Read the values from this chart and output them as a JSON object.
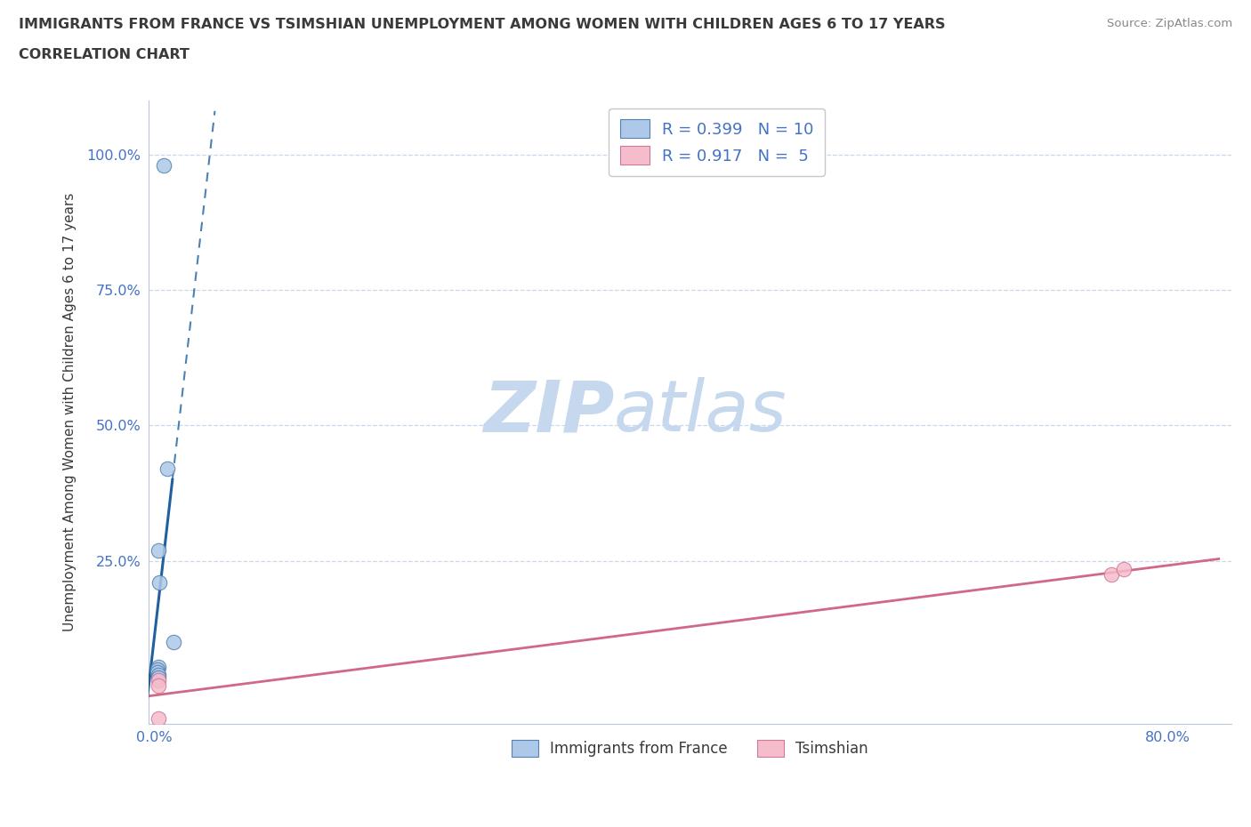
{
  "title_line1": "IMMIGRANTS FROM FRANCE VS TSIMSHIAN UNEMPLOYMENT AMONG WOMEN WITH CHILDREN AGES 6 TO 17 YEARS",
  "title_line2": "CORRELATION CHART",
  "source_text": "Source: ZipAtlas.com",
  "ylabel": "Unemployment Among Women with Children Ages 6 to 17 years",
  "xlim": [
    -0.5,
    85.0
  ],
  "ylim": [
    -5.0,
    110.0
  ],
  "blue_points_x": [
    0.7,
    0.3,
    0.4,
    0.3,
    0.2,
    0.2,
    0.3,
    0.3,
    1.0,
    1.5
  ],
  "blue_points_y": [
    98.0,
    27.0,
    21.0,
    5.5,
    5.0,
    4.5,
    4.0,
    3.5,
    42.0,
    10.0
  ],
  "pink_points_x": [
    0.3,
    0.3,
    0.3,
    75.5,
    76.5
  ],
  "pink_points_y": [
    3.0,
    2.0,
    -4.0,
    22.5,
    23.5
  ],
  "blue_R": 0.399,
  "blue_N": 10,
  "pink_R": 0.917,
  "pink_N": 5,
  "blue_marker_color": "#adc8e8",
  "blue_edge_color": "#5580b0",
  "blue_line_color": "#2060a0",
  "pink_marker_color": "#f5bccb",
  "pink_edge_color": "#d07898",
  "pink_line_color": "#d06888",
  "legend_label_blue": "Immigrants from France",
  "legend_label_pink": "Tsimshian",
  "watermark_zip": "ZIP",
  "watermark_atlas": "atlas",
  "watermark_color_zip": "#c5d8ee",
  "watermark_color_atlas": "#c5d8ee",
  "title_color": "#3a3a3a",
  "legend_text_color": "#4472c4",
  "tick_label_color": "#4472c4",
  "grid_color": "#c8d8e8",
  "background_color": "#ffffff",
  "x_ticks": [
    0.0,
    80.0
  ],
  "x_tick_labels": [
    "0.0%",
    "80.0%"
  ],
  "y_ticks": [
    0.0,
    25.0,
    50.0,
    75.0,
    100.0
  ],
  "y_tick_labels": [
    "",
    "25.0%",
    "50.0%",
    "75.0%",
    "100.0%"
  ]
}
